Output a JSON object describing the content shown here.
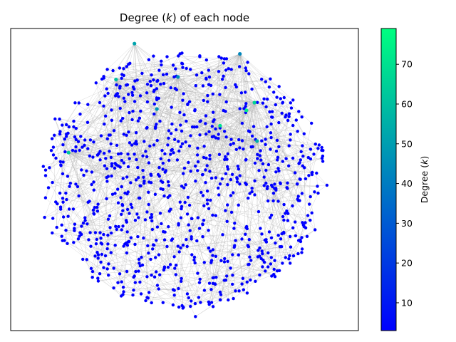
{
  "chart_data": {
    "type": "scatter",
    "subtype": "network-graph",
    "title": "Degree (k) of each node",
    "title_prefix": "Degree (",
    "title_var": "k",
    "title_suffix": ") of each node",
    "xlabel": "",
    "ylabel": "",
    "axes_ticks_visible": false,
    "grid": false,
    "legend": "none",
    "node_count_approx": 1000,
    "node_default_color": "#0000ff",
    "edge_color": "#b0b0b0",
    "colorbar": {
      "label_prefix": "Degree (",
      "label_var": "k",
      "label_suffix": ")",
      "range": [
        3,
        79
      ],
      "ticks": [
        10,
        20,
        30,
        40,
        50,
        60,
        70
      ],
      "colormap": "winter",
      "color_low": "#0000ff",
      "color_high": "#00ff80"
    },
    "hubs": [
      {
        "x": 0.27,
        "y": 0.42,
        "degree": 70
      },
      {
        "x": 0.47,
        "y": 0.54,
        "degree": 74
      },
      {
        "x": 0.53,
        "y": 0.6,
        "degree": 66
      },
      {
        "x": -0.38,
        "y": 1.06,
        "degree": 52
      },
      {
        "x": -0.52,
        "y": 0.78,
        "degree": 60
      },
      {
        "x": -0.88,
        "y": 0.21,
        "degree": 62
      },
      {
        "x": -0.21,
        "y": 0.55,
        "degree": 48
      },
      {
        "x": 0.55,
        "y": 0.3,
        "degree": 55
      },
      {
        "x": -0.05,
        "y": 0.8,
        "degree": 45
      },
      {
        "x": 0.42,
        "y": 0.98,
        "degree": 43
      }
    ]
  }
}
